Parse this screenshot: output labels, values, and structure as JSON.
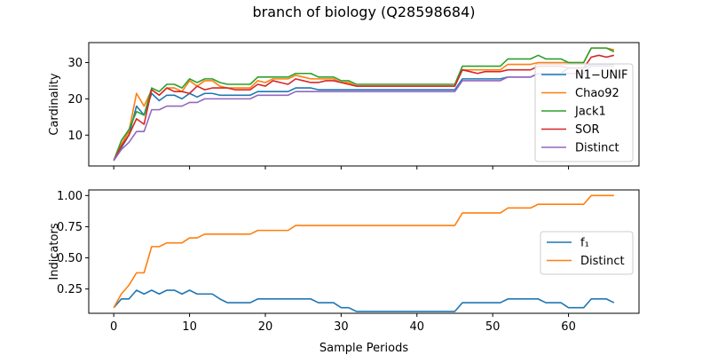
{
  "figure": {
    "title": "branch of biology (Q28598684)",
    "xlabel": "Sample Periods"
  },
  "chart_data": [
    {
      "type": "line",
      "ylabel": "Cardinality",
      "xlim": [
        -3.3,
        69.3
      ],
      "ylim": [
        1.5,
        35.5
      ],
      "xticks": [
        0,
        10,
        20,
        30,
        40,
        50,
        60
      ],
      "yticks": [
        10,
        20,
        30
      ],
      "ytick_labels": [
        "10",
        "20",
        "30"
      ],
      "show_xtick_labels": false,
      "legend_position": "center-right",
      "series": [
        {
          "name": "N1−UNIF",
          "color": "#1f77b4",
          "values": [
            3,
            6.5,
            10,
            18,
            15.5,
            21.5,
            19.5,
            21,
            21,
            20,
            21.5,
            20.5,
            21.5,
            21.5,
            21,
            21,
            21,
            21,
            21,
            22,
            22,
            22,
            22,
            22,
            23,
            23,
            23,
            22.5,
            22.5,
            22.5,
            22.5,
            22.5,
            22.5,
            22.5,
            22.5,
            22.5,
            22.5,
            22.5,
            22.5,
            22.5,
            22.5,
            22.5,
            22.5,
            22.5,
            22.5,
            22.5,
            25.5,
            25.5,
            25.5,
            25.5,
            25.5,
            25.5,
            26,
            26,
            26,
            26,
            27,
            27,
            27,
            27,
            28.5,
            28.5,
            28.5,
            29.5,
            29.5,
            29.5,
            29.5
          ]
        },
        {
          "name": "Chao92",
          "color": "#ff7f0e",
          "values": [
            3,
            7.5,
            11,
            21.5,
            18,
            22.5,
            21,
            23,
            23,
            22,
            25,
            23.5,
            25,
            25,
            23.5,
            23,
            23,
            23,
            23,
            25,
            24.5,
            25.5,
            25.5,
            25.5,
            26.5,
            26,
            25.5,
            25.5,
            25.5,
            25.5,
            24.5,
            24.5,
            23.5,
            23.5,
            23.5,
            23.5,
            23.5,
            23.5,
            23.5,
            23.5,
            23.5,
            23.5,
            23.5,
            23.5,
            23.5,
            23.5,
            28,
            28,
            28,
            28,
            28,
            28,
            29.5,
            29.5,
            29.5,
            29.5,
            30,
            30,
            30,
            30,
            30,
            30,
            30,
            34,
            34,
            34,
            33.5
          ]
        },
        {
          "name": "Jack1",
          "color": "#2ca02c",
          "values": [
            3,
            8.5,
            11.5,
            16.5,
            15.5,
            23,
            22,
            24,
            24,
            23,
            25.5,
            24.5,
            25.5,
            25.5,
            24.5,
            24,
            24,
            24,
            24,
            26,
            26,
            26,
            26,
            26,
            27,
            27,
            27,
            26,
            26,
            26,
            25,
            25,
            24,
            24,
            24,
            24,
            24,
            24,
            24,
            24,
            24,
            24,
            24,
            24,
            24,
            24,
            29,
            29,
            29,
            29,
            29,
            29,
            31,
            31,
            31,
            31,
            32,
            31,
            31,
            31,
            30,
            30,
            30,
            34,
            34,
            34,
            33
          ]
        },
        {
          "name": "SOR",
          "color": "#d62728",
          "values": [
            3,
            7,
            10,
            14.5,
            13,
            22.5,
            21,
            23,
            22,
            22,
            21.5,
            23.5,
            22.5,
            23,
            23,
            23,
            22.5,
            22.5,
            22.5,
            24,
            23.5,
            25,
            24.5,
            24,
            25.5,
            25,
            24.5,
            24.5,
            25,
            25,
            24.5,
            24,
            23.5,
            23.5,
            23.5,
            23.5,
            23.5,
            23.5,
            23.5,
            23.5,
            23.5,
            23.5,
            23.5,
            23.5,
            23.5,
            23.5,
            28,
            27.5,
            27,
            27.5,
            27.5,
            27.5,
            28,
            28,
            28,
            28,
            29,
            29,
            29,
            29,
            28.5,
            28.5,
            28.5,
            31.5,
            32,
            31.5,
            32
          ]
        },
        {
          "name": "Distinct",
          "color": "#9467bd",
          "values": [
            3,
            6,
            8,
            11,
            11,
            17,
            17,
            18,
            18,
            18,
            19,
            19,
            20,
            20,
            20,
            20,
            20,
            20,
            20,
            21,
            21,
            21,
            21,
            21,
            22,
            22,
            22,
            22,
            22,
            22,
            22,
            22,
            22,
            22,
            22,
            22,
            22,
            22,
            22,
            22,
            22,
            22,
            22,
            22,
            22,
            22,
            25,
            25,
            25,
            25,
            25,
            25,
            26,
            26,
            26,
            26,
            27,
            27,
            27,
            27,
            27,
            27,
            27,
            29,
            29,
            29,
            29
          ]
        }
      ]
    },
    {
      "type": "line",
      "ylabel": "Indicators",
      "xlim": [
        -3.3,
        69.3
      ],
      "ylim": [
        0.055,
        1.045
      ],
      "xticks": [
        0,
        10,
        20,
        30,
        40,
        50,
        60
      ],
      "xtick_labels": [
        "0",
        "10",
        "20",
        "30",
        "40",
        "50",
        "60"
      ],
      "yticks": [
        0.25,
        0.5,
        0.75,
        1.0
      ],
      "ytick_labels": [
        "0.25",
        "0.50",
        "0.75",
        "1.00"
      ],
      "legend_position": "center-right",
      "series": [
        {
          "name": "f₁",
          "color": "#1f77b4",
          "values": [
            0.1,
            0.17,
            0.17,
            0.24,
            0.21,
            0.24,
            0.21,
            0.24,
            0.24,
            0.21,
            0.24,
            0.21,
            0.21,
            0.21,
            0.17,
            0.14,
            0.14,
            0.14,
            0.14,
            0.17,
            0.17,
            0.17,
            0.17,
            0.17,
            0.17,
            0.17,
            0.17,
            0.14,
            0.14,
            0.14,
            0.1,
            0.1,
            0.07,
            0.07,
            0.07,
            0.07,
            0.07,
            0.07,
            0.07,
            0.07,
            0.07,
            0.07,
            0.07,
            0.07,
            0.07,
            0.07,
            0.14,
            0.14,
            0.14,
            0.14,
            0.14,
            0.14,
            0.17,
            0.17,
            0.17,
            0.17,
            0.17,
            0.14,
            0.14,
            0.14,
            0.1,
            0.1,
            0.1,
            0.17,
            0.17,
            0.17,
            0.14
          ]
        },
        {
          "name": "Distinct",
          "color": "#ff7f0e",
          "values": [
            0.1,
            0.21,
            0.28,
            0.38,
            0.38,
            0.59,
            0.59,
            0.62,
            0.62,
            0.62,
            0.66,
            0.66,
            0.69,
            0.69,
            0.69,
            0.69,
            0.69,
            0.69,
            0.69,
            0.72,
            0.72,
            0.72,
            0.72,
            0.72,
            0.76,
            0.76,
            0.76,
            0.76,
            0.76,
            0.76,
            0.76,
            0.76,
            0.76,
            0.76,
            0.76,
            0.76,
            0.76,
            0.76,
            0.76,
            0.76,
            0.76,
            0.76,
            0.76,
            0.76,
            0.76,
            0.76,
            0.86,
            0.86,
            0.86,
            0.86,
            0.86,
            0.86,
            0.9,
            0.9,
            0.9,
            0.9,
            0.93,
            0.93,
            0.93,
            0.93,
            0.93,
            0.93,
            0.93,
            1.0,
            1.0,
            1.0,
            1.0
          ]
        }
      ]
    }
  ]
}
